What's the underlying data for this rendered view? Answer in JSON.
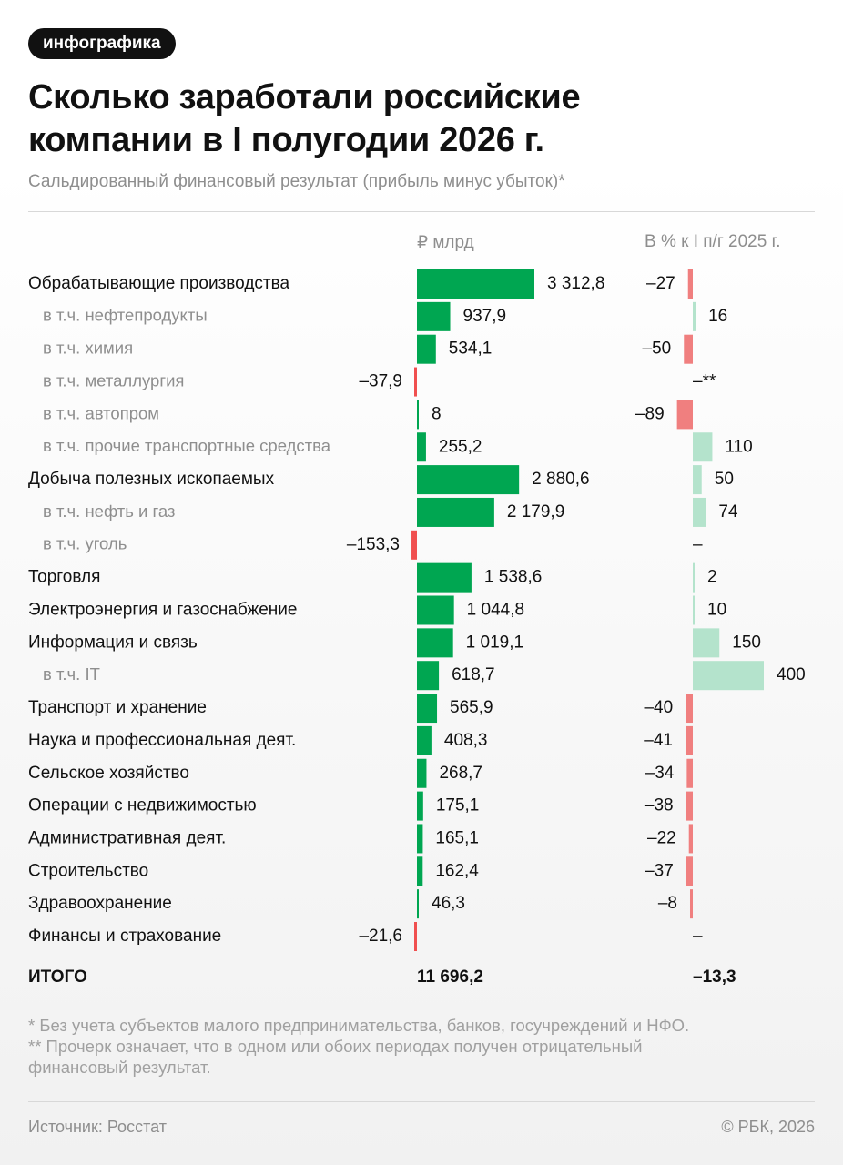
{
  "badge": "инфографика",
  "title_line1": "Сколько заработали российские",
  "title_line2": "компании в I полугодии 2026 г.",
  "subtitle": "Сальдированный финансовый результат (прибыль минус убыток)*",
  "footnotes": [
    "* Без учета субъектов малого предпринимательства, банков, госучреждений и НФО.",
    "** Прочерк означает, что в одном или обоих периодах получен отрицательный",
    "финансовый результат."
  ],
  "source": "Источник: Росстат",
  "copyright": "© РБК, 2026",
  "colors": {
    "positive": "#00a651",
    "negative": "#f04f4f",
    "pct_positive": "#b4e3cc",
    "pct_negative": "#f07f7f"
  },
  "chart_data": {
    "type": "bar",
    "title": "Сколько заработали российские компании в I полугодии 2026 г.",
    "subtitle": "Сальдированный финансовый результат (прибыль минус убыток)*",
    "columns": [
      "₽ млрд",
      "В % к I п/г 2025 г."
    ],
    "rows": [
      {
        "label": "Обрабатывающие производства",
        "sub": false,
        "value": 3312.8,
        "value_label": "3 312,8",
        "pct": -27,
        "pct_label": "–27"
      },
      {
        "label": "в т.ч. нефтепродукты",
        "sub": true,
        "value": 937.9,
        "value_label": "937,9",
        "pct": 16,
        "pct_label": "16"
      },
      {
        "label": "в т.ч. химия",
        "sub": true,
        "value": 534.1,
        "value_label": "534,1",
        "pct": -50,
        "pct_label": "–50"
      },
      {
        "label": "в т.ч. металлургия",
        "sub": true,
        "value": -37.9,
        "value_label": "–37,9",
        "pct": null,
        "pct_label": "–**"
      },
      {
        "label": "в т.ч. автопром",
        "sub": true,
        "value": 8,
        "value_label": "8",
        "pct": -89,
        "pct_label": "–89"
      },
      {
        "label": "в т.ч. прочие транспортные средства",
        "sub": true,
        "value": 255.2,
        "value_label": "255,2",
        "pct": 110,
        "pct_label": "110"
      },
      {
        "label": "Добыча полезных ископаемых",
        "sub": false,
        "value": 2880.6,
        "value_label": "2 880,6",
        "pct": 50,
        "pct_label": "50"
      },
      {
        "label": "в т.ч. нефть и газ",
        "sub": true,
        "value": 2179.9,
        "value_label": "2 179,9",
        "pct": 74,
        "pct_label": "74"
      },
      {
        "label": "в т.ч. уголь",
        "sub": true,
        "value": -153.3,
        "value_label": "–153,3",
        "pct": null,
        "pct_label": "–"
      },
      {
        "label": "Торговля",
        "sub": false,
        "value": 1538.6,
        "value_label": "1 538,6",
        "pct": 2,
        "pct_label": "2"
      },
      {
        "label": "Электроэнергия и газоснабжение",
        "sub": false,
        "value": 1044.8,
        "value_label": "1 044,8",
        "pct": 10,
        "pct_label": "10"
      },
      {
        "label": "Информация и связь",
        "sub": false,
        "value": 1019.1,
        "value_label": "1 019,1",
        "pct": 150,
        "pct_label": "150"
      },
      {
        "label": "в т.ч. IT",
        "sub": true,
        "value": 618.7,
        "value_label": "618,7",
        "pct": 400,
        "pct_label": "400"
      },
      {
        "label": "Транспорт и хранение",
        "sub": false,
        "value": 565.9,
        "value_label": "565,9",
        "pct": -40,
        "pct_label": "–40"
      },
      {
        "label": "Наука и профессиональная деят.",
        "sub": false,
        "value": 408.3,
        "value_label": "408,3",
        "pct": -41,
        "pct_label": "–41"
      },
      {
        "label": "Сельское хозяйство",
        "sub": false,
        "value": 268.7,
        "value_label": "268,7",
        "pct": -34,
        "pct_label": "–34"
      },
      {
        "label": "Операции с недвижимостью",
        "sub": false,
        "value": 175.1,
        "value_label": "175,1",
        "pct": -38,
        "pct_label": "–38"
      },
      {
        "label": "Административная деят.",
        "sub": false,
        "value": 165.1,
        "value_label": "165,1",
        "pct": -22,
        "pct_label": "–22"
      },
      {
        "label": "Строительство",
        "sub": false,
        "value": 162.4,
        "value_label": "162,4",
        "pct": -37,
        "pct_label": "–37"
      },
      {
        "label": "Здравоохранение",
        "sub": false,
        "value": 46.3,
        "value_label": "46,3",
        "pct": -8,
        "pct_label": "–8"
      },
      {
        "label": "Финансы и страхование",
        "sub": false,
        "value": -21.6,
        "value_label": "–21,6",
        "pct": null,
        "pct_label": "–"
      }
    ],
    "total": {
      "label": "ИТОГО",
      "value": 11696.2,
      "value_label": "11 696,2",
      "pct": -13.3,
      "pct_label": "–13,3"
    }
  }
}
